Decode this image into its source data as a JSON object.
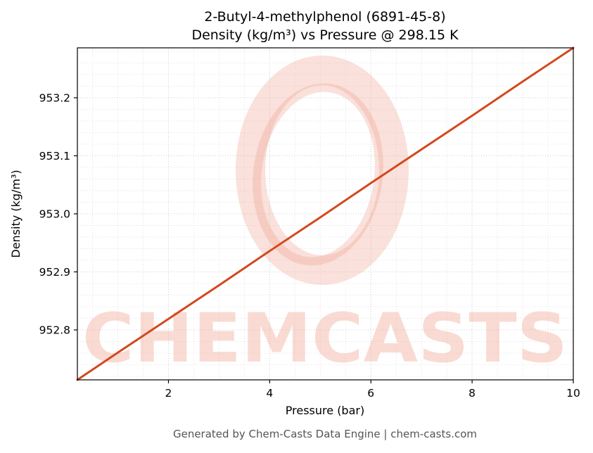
{
  "title": {
    "line1": "2-Butyl-4-methylphenol (6891-45-8)",
    "line2": "Density (kg/m³) vs Pressure @ 298.15 K"
  },
  "footer": "Generated by Chem-Casts Data Engine | chem-casts.com",
  "watermark": {
    "text": "CHEMCASTS",
    "color": "#f0a18e",
    "text_opacity": 0.38,
    "ring_opacity": 0.32
  },
  "chart_data": {
    "type": "line",
    "title": "2-Butyl-4-methylphenol (6891-45-8) Density (kg/m³) vs Pressure @ 298.15 K",
    "xlabel": "Pressure (bar)",
    "ylabel": "Density (kg/m³)",
    "series_name": "Density",
    "temperature_K": "298.15",
    "x": [
      0.2,
      1,
      2,
      3,
      4,
      5,
      6,
      7,
      8,
      9,
      10
    ],
    "y": [
      952.714,
      952.761,
      952.819,
      952.877,
      952.936,
      952.994,
      953.053,
      953.111,
      953.169,
      953.228,
      953.286
    ],
    "xlim": [
      0.2,
      10
    ],
    "ylim": [
      952.714,
      953.286
    ],
    "xticks": [
      2,
      4,
      6,
      8,
      10
    ],
    "xtick_labels": [
      "2",
      "4",
      "6",
      "8",
      "10"
    ],
    "yticks": [
      952.8,
      952.9,
      953.0,
      953.1,
      953.2
    ],
    "ytick_labels": [
      "952.8",
      "952.9",
      "953.0",
      "953.1",
      "953.2"
    ],
    "minor_x_step": 0.5,
    "minor_y_step": 0.02,
    "grid": true,
    "legend": "none",
    "line_color": "#d2491e",
    "axis_color": "#000000",
    "grid_minor_color": "#dedede",
    "grid_major_color": "#cccccc",
    "tick_label_color": "#000000"
  }
}
